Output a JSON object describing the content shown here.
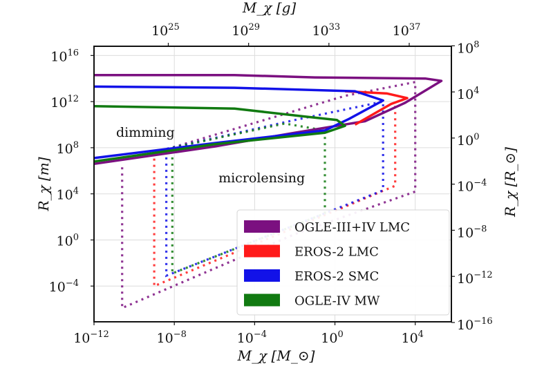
{
  "chart_data": {
    "type": "line",
    "title": "",
    "xlabel": "M_χ [M_⊙]",
    "ylabel": "R_χ [m]",
    "x2label": "M_χ [g]",
    "y2label": "R_χ [R_⊙]",
    "xscale": "log",
    "yscale": "log",
    "xlim_log10": [
      -12,
      5.8
    ],
    "ylim_log10": [
      -7.1,
      16.8
    ],
    "x_ticks": [
      {
        "exp": -12,
        "base": "10",
        "sup": "−12"
      },
      {
        "exp": -8,
        "base": "10",
        "sup": "−8"
      },
      {
        "exp": -4,
        "base": "10",
        "sup": "−4"
      },
      {
        "exp": 0,
        "base": "10",
        "sup": "0"
      },
      {
        "exp": 4,
        "base": "10",
        "sup": "4"
      }
    ],
    "y_ticks": [
      {
        "exp": 16,
        "base": "10",
        "sup": "16"
      },
      {
        "exp": 12,
        "base": "10",
        "sup": "12"
      },
      {
        "exp": 8,
        "base": "10",
        "sup": "8"
      },
      {
        "exp": 4,
        "base": "10",
        "sup": "4"
      },
      {
        "exp": 0,
        "base": "10",
        "sup": "0"
      },
      {
        "exp": -4,
        "base": "10",
        "sup": "−4"
      }
    ],
    "x2_ticks": [
      {
        "exp_in_primary": -8.3,
        "base": "10",
        "sup": "25"
      },
      {
        "exp_in_primary": -4.3,
        "base": "10",
        "sup": "29"
      },
      {
        "exp_in_primary": -0.3,
        "base": "10",
        "sup": "33"
      },
      {
        "exp_in_primary": 3.7,
        "base": "10",
        "sup": "37"
      }
    ],
    "y2_ticks": [
      {
        "exp_in_primary": 16.84,
        "base": "10",
        "sup": "8"
      },
      {
        "exp_in_primary": 12.84,
        "base": "10",
        "sup": "4"
      },
      {
        "exp_in_primary": 8.84,
        "base": "10",
        "sup": "0"
      },
      {
        "exp_in_primary": 4.84,
        "base": "10",
        "sup": "−4"
      },
      {
        "exp_in_primary": 0.84,
        "base": "10",
        "sup": "−8"
      },
      {
        "exp_in_primary": -3.16,
        "base": "10",
        "sup": "−12"
      },
      {
        "exp_in_primary": -7.16,
        "base": "10",
        "sup": "−16"
      }
    ],
    "grid": true,
    "legend_position": "lower-right",
    "annotations": [
      {
        "text": "dimming",
        "x_log10": -10.9,
        "y_log10": 8.95
      },
      {
        "text": "microlensing",
        "x_log10": -5.8,
        "y_log10": 5.0
      }
    ],
    "series": [
      {
        "name": "OGLE-III+IV LMC",
        "color": "#7b1080",
        "solid": [
          [
            -12,
            6.6
          ],
          [
            -6,
            8.1
          ],
          [
            -2,
            9.3
          ],
          [
            1.5,
            10.3
          ],
          [
            3.5,
            11.9
          ],
          [
            5.3,
            13.8
          ],
          [
            4.5,
            14.0
          ],
          [
            -1,
            14.1
          ],
          [
            -5,
            14.3
          ],
          [
            -12,
            14.3
          ]
        ],
        "dotted": [
          [
            -10.6,
            6.3
          ],
          [
            -10.6,
            -5.9
          ],
          [
            -2.0,
            0.5
          ],
          [
            4.0,
            4.2
          ],
          [
            4.0,
            13.7
          ],
          [
            0.5,
            12.5
          ],
          [
            -8.7,
            7.7
          ]
        ]
      },
      {
        "name": "EROS-2 LMC",
        "color": "#ff1a1a",
        "solid": [
          [
            1.0,
            10.0
          ],
          [
            2.8,
            11.8
          ],
          [
            3.6,
            12.3
          ],
          [
            2.6,
            12.7
          ],
          [
            0.5,
            12.9
          ]
        ],
        "dotted": [
          [
            -9.0,
            7.6
          ],
          [
            -9.0,
            -4.0
          ],
          [
            3.0,
            4.7
          ],
          [
            3.0,
            11.9
          ]
        ]
      },
      {
        "name": "EROS-2 SMC",
        "color": "#1212e8",
        "solid": [
          [
            -12,
            7.1
          ],
          [
            -6,
            8.4
          ],
          [
            -0.5,
            9.5
          ],
          [
            0.7,
            10.5
          ],
          [
            2.4,
            12.1
          ],
          [
            1,
            12.9
          ],
          [
            -5,
            13.2
          ],
          [
            -12,
            13.3
          ]
        ],
        "dotted": [
          [
            -8.4,
            7.7
          ],
          [
            -8.4,
            -3.1
          ],
          [
            2.4,
            4.3
          ],
          [
            2.4,
            12.0
          ],
          [
            -2,
            10.4
          ],
          [
            -8.4,
            7.9
          ]
        ]
      },
      {
        "name": "OGLE-IV MW",
        "color": "#117a11",
        "solid": [
          [
            -12,
            6.8
          ],
          [
            -6,
            8.3
          ],
          [
            -0.5,
            9.3
          ],
          [
            0.5,
            9.9
          ],
          [
            0.1,
            10.4
          ],
          [
            -1.5,
            10.7
          ],
          [
            -5,
            11.4
          ],
          [
            -12,
            11.6
          ]
        ],
        "dotted": [
          [
            -8.1,
            7.7
          ],
          [
            -8.1,
            -2.9
          ],
          [
            -0.5,
            2.3
          ],
          [
            -0.5,
            9.5
          ],
          [
            -2.5,
            10.1
          ],
          [
            -8.1,
            8.0
          ]
        ]
      }
    ]
  }
}
